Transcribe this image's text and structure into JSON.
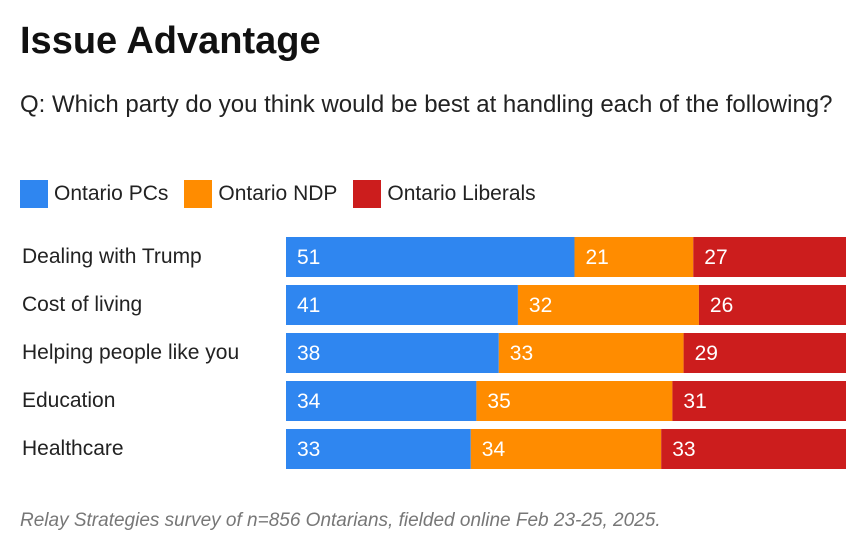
{
  "chart_data": {
    "type": "bar",
    "stacked": true,
    "orientation": "horizontal",
    "title": "Issue Advantage",
    "subtitle": "Q: Which party do you think would be best at handling each of the following?",
    "categories": [
      "Dealing with Trump",
      "Cost of living",
      "Helping people like you",
      "Education",
      "Healthcare"
    ],
    "series": [
      {
        "name": "Ontario PCs",
        "color": "#2F86F0",
        "values": [
          51,
          41,
          38,
          34,
          33
        ]
      },
      {
        "name": "Ontario NDP",
        "color": "#FF8C00",
        "values": [
          21,
          32,
          33,
          35,
          34
        ]
      },
      {
        "name": "Ontario Liberals",
        "color": "#CC1D1D",
        "values": [
          27,
          26,
          29,
          31,
          33
        ]
      }
    ],
    "legend": "top-left",
    "footnote": "Relay Strategies survey of n=856 Ontarians, fielded online Feb 23-25, 2025."
  }
}
